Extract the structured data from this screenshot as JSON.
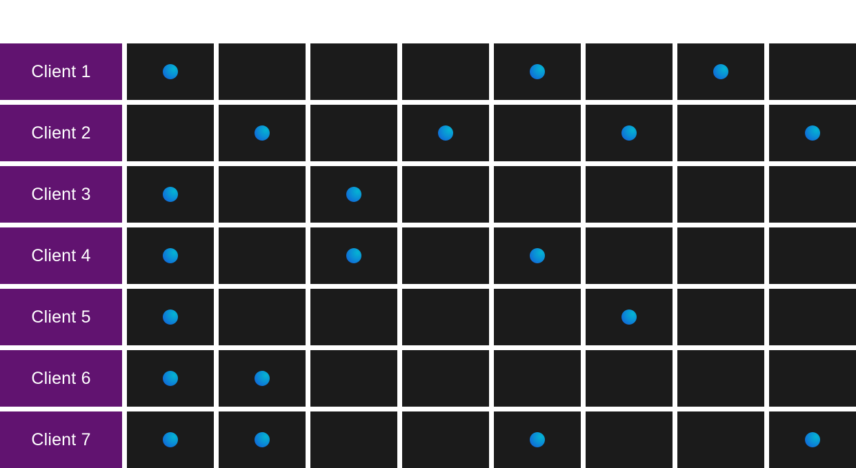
{
  "colors": {
    "label_bg": "#611370",
    "cell_bg": "#1b1b1b",
    "dot_start": "#05b4d2",
    "dot_end": "#1457d8"
  },
  "rows": [
    {
      "label": "Client 1",
      "marks": [
        true,
        false,
        false,
        false,
        true,
        false,
        true,
        false
      ]
    },
    {
      "label": "Client 2",
      "marks": [
        false,
        true,
        false,
        true,
        false,
        true,
        false,
        true
      ]
    },
    {
      "label": "Client 3",
      "marks": [
        true,
        false,
        true,
        false,
        false,
        false,
        false,
        false
      ]
    },
    {
      "label": "Client 4",
      "marks": [
        true,
        false,
        true,
        false,
        true,
        false,
        false,
        false
      ]
    },
    {
      "label": "Client 5",
      "marks": [
        true,
        false,
        false,
        false,
        false,
        true,
        false,
        false
      ]
    },
    {
      "label": "Client 6",
      "marks": [
        true,
        true,
        false,
        false,
        false,
        false,
        false,
        false
      ]
    },
    {
      "label": "Client 7",
      "marks": [
        true,
        true,
        false,
        false,
        true,
        false,
        false,
        true
      ]
    }
  ]
}
